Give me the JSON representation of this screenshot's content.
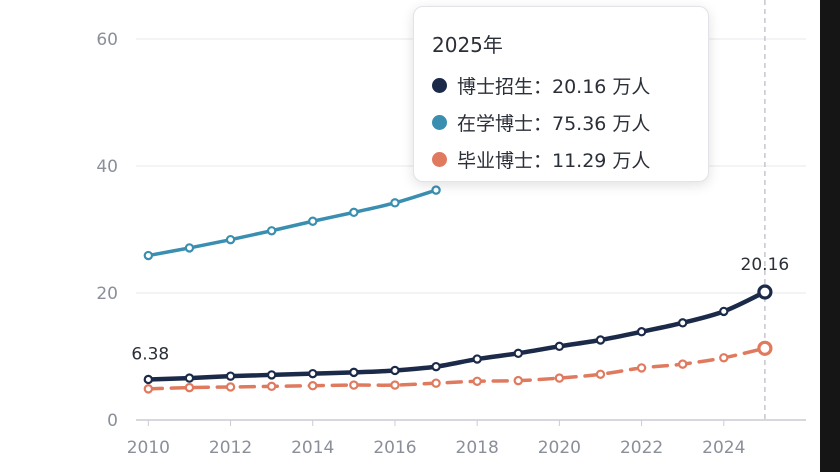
{
  "chart_data": {
    "type": "line",
    "title": "",
    "xlabel": "",
    "ylabel": "",
    "xlim": [
      2010,
      2025
    ],
    "ylim": [
      0,
      60
    ],
    "x_ticks": [
      "2010",
      "2012",
      "2014",
      "2016",
      "2018",
      "2020",
      "2022",
      "2024"
    ],
    "y_ticks": [
      "0",
      "20",
      "40",
      "60"
    ],
    "grid": "horizontal",
    "series": [
      {
        "name": "博士招生",
        "color": "#1c2a4a",
        "style": "solid",
        "x": [
          2010,
          2011,
          2012,
          2013,
          2014,
          2015,
          2016,
          2017,
          2018,
          2019,
          2020,
          2021,
          2022,
          2023,
          2024,
          2025
        ],
        "y": [
          6.38,
          6.6,
          6.9,
          7.1,
          7.3,
          7.5,
          7.8,
          8.4,
          9.6,
          10.5,
          11.6,
          12.6,
          13.9,
          15.3,
          17.1,
          20.16
        ]
      },
      {
        "name": "在学博士",
        "color": "#3a8fb0",
        "style": "solid",
        "x": [
          2010,
          2011,
          2012,
          2013,
          2014,
          2015,
          2016,
          2017
        ],
        "y": [
          25.9,
          27.1,
          28.4,
          29.8,
          31.3,
          32.7,
          34.2,
          36.2
        ]
      },
      {
        "name": "毕业博士",
        "color": "#e07a5f",
        "style": "dashed",
        "x": [
          2010,
          2011,
          2012,
          2013,
          2014,
          2015,
          2016,
          2017,
          2018,
          2019,
          2020,
          2021,
          2022,
          2023,
          2024,
          2025
        ],
        "y": [
          4.9,
          5.1,
          5.2,
          5.3,
          5.4,
          5.5,
          5.5,
          5.8,
          6.1,
          6.2,
          6.6,
          7.2,
          8.2,
          8.8,
          9.8,
          11.29
        ]
      }
    ],
    "annotations": [
      {
        "text": "6.38"
      },
      {
        "text": "20.16"
      }
    ],
    "tooltip": {
      "title": "2025年",
      "rows": [
        {
          "label": "博士招生：20.16 万人",
          "color": "#1c2a4a"
        },
        {
          "label": "在学博士：75.36 万人",
          "color": "#3a8fb0"
        },
        {
          "label": "毕业博士：11.29 万人",
          "color": "#e07a5f"
        }
      ]
    }
  }
}
